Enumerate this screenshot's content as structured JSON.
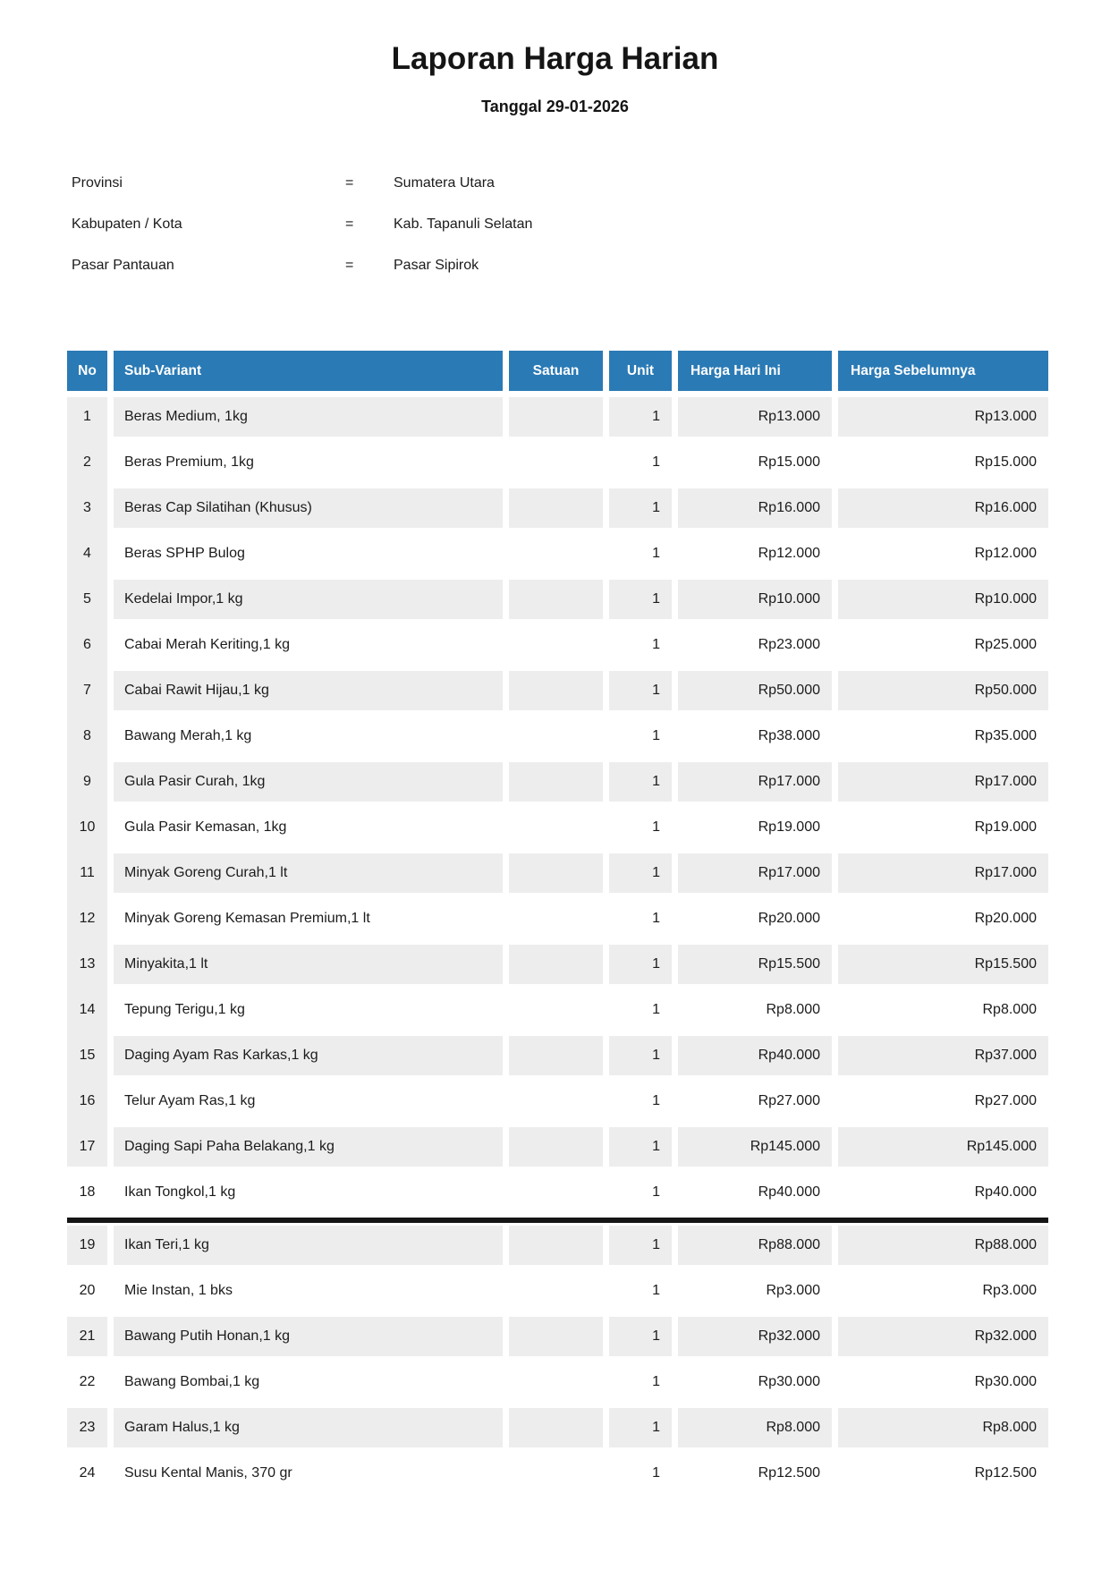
{
  "title": "Laporan Harga Harian",
  "subtitle": "Tanggal 29-01-2026",
  "info": {
    "rows": [
      {
        "label": "Provinsi",
        "eq": "=",
        "value": "Sumatera Utara"
      },
      {
        "label": "Kabupaten / Kota",
        "eq": "=",
        "value": "Kab. Tapanuli Selatan"
      },
      {
        "label": "Pasar Pantauan",
        "eq": "=",
        "value": "Pasar Sipirok"
      }
    ]
  },
  "table": {
    "columns": [
      "No",
      "Sub-Variant",
      "Satuan",
      "Unit",
      "Harga Hari Ini",
      "Harga Sebelumnya"
    ],
    "page_break_after_row": 18,
    "rows": [
      {
        "no": "1",
        "sub_variant": "Beras Medium, 1kg",
        "satuan": "",
        "unit": "1",
        "harga_hari_ini": "Rp13.000",
        "harga_sebelumnya": "Rp13.000"
      },
      {
        "no": "2",
        "sub_variant": "Beras Premium, 1kg",
        "satuan": "",
        "unit": "1",
        "harga_hari_ini": "Rp15.000",
        "harga_sebelumnya": "Rp15.000"
      },
      {
        "no": "3",
        "sub_variant": "Beras Cap Silatihan (Khusus)",
        "satuan": "",
        "unit": "1",
        "harga_hari_ini": "Rp16.000",
        "harga_sebelumnya": "Rp16.000"
      },
      {
        "no": "4",
        "sub_variant": "Beras SPHP Bulog",
        "satuan": "",
        "unit": "1",
        "harga_hari_ini": "Rp12.000",
        "harga_sebelumnya": "Rp12.000"
      },
      {
        "no": "5",
        "sub_variant": "Kedelai Impor,1 kg",
        "satuan": "",
        "unit": "1",
        "harga_hari_ini": "Rp10.000",
        "harga_sebelumnya": "Rp10.000"
      },
      {
        "no": "6",
        "sub_variant": "Cabai Merah Keriting,1 kg",
        "satuan": "",
        "unit": "1",
        "harga_hari_ini": "Rp23.000",
        "harga_sebelumnya": "Rp25.000"
      },
      {
        "no": "7",
        "sub_variant": "Cabai Rawit Hijau,1 kg",
        "satuan": "",
        "unit": "1",
        "harga_hari_ini": "Rp50.000",
        "harga_sebelumnya": "Rp50.000"
      },
      {
        "no": "8",
        "sub_variant": "Bawang Merah,1 kg",
        "satuan": "",
        "unit": "1",
        "harga_hari_ini": "Rp38.000",
        "harga_sebelumnya": "Rp35.000"
      },
      {
        "no": "9",
        "sub_variant": "Gula Pasir Curah, 1kg",
        "satuan": "",
        "unit": "1",
        "harga_hari_ini": "Rp17.000",
        "harga_sebelumnya": "Rp17.000"
      },
      {
        "no": "10",
        "sub_variant": "Gula Pasir Kemasan, 1kg",
        "satuan": "",
        "unit": "1",
        "harga_hari_ini": "Rp19.000",
        "harga_sebelumnya": "Rp19.000"
      },
      {
        "no": "11",
        "sub_variant": "Minyak Goreng Curah,1 lt",
        "satuan": "",
        "unit": "1",
        "harga_hari_ini": "Rp17.000",
        "harga_sebelumnya": "Rp17.000"
      },
      {
        "no": "12",
        "sub_variant": "Minyak Goreng Kemasan Premium,1 lt",
        "satuan": "",
        "unit": "1",
        "harga_hari_ini": "Rp20.000",
        "harga_sebelumnya": "Rp20.000"
      },
      {
        "no": "13",
        "sub_variant": "Minyakita,1 lt",
        "satuan": "",
        "unit": "1",
        "harga_hari_ini": "Rp15.500",
        "harga_sebelumnya": "Rp15.500"
      },
      {
        "no": "14",
        "sub_variant": "Tepung Terigu,1 kg",
        "satuan": "",
        "unit": "1",
        "harga_hari_ini": "Rp8.000",
        "harga_sebelumnya": "Rp8.000"
      },
      {
        "no": "15",
        "sub_variant": "Daging Ayam Ras Karkas,1 kg",
        "satuan": "",
        "unit": "1",
        "harga_hari_ini": "Rp40.000",
        "harga_sebelumnya": "Rp37.000"
      },
      {
        "no": "16",
        "sub_variant": "Telur Ayam Ras,1 kg",
        "satuan": "",
        "unit": "1",
        "harga_hari_ini": "Rp27.000",
        "harga_sebelumnya": "Rp27.000"
      },
      {
        "no": "17",
        "sub_variant": "Daging Sapi Paha Belakang,1 kg",
        "satuan": "",
        "unit": "1",
        "harga_hari_ini": "Rp145.000",
        "harga_sebelumnya": "Rp145.000"
      },
      {
        "no": "18",
        "sub_variant": "Ikan Tongkol,1 kg",
        "satuan": "",
        "unit": "1",
        "harga_hari_ini": "Rp40.000",
        "harga_sebelumnya": "Rp40.000"
      },
      {
        "no": "19",
        "sub_variant": "Ikan Teri,1 kg",
        "satuan": "",
        "unit": "1",
        "harga_hari_ini": "Rp88.000",
        "harga_sebelumnya": "Rp88.000"
      },
      {
        "no": "20",
        "sub_variant": "Mie Instan, 1 bks",
        "satuan": "",
        "unit": "1",
        "harga_hari_ini": "Rp3.000",
        "harga_sebelumnya": "Rp3.000"
      },
      {
        "no": "21",
        "sub_variant": "Bawang Putih Honan,1 kg",
        "satuan": "",
        "unit": "1",
        "harga_hari_ini": "Rp32.000",
        "harga_sebelumnya": "Rp32.000"
      },
      {
        "no": "22",
        "sub_variant": "Bawang Bombai,1 kg",
        "satuan": "",
        "unit": "1",
        "harga_hari_ini": "Rp30.000",
        "harga_sebelumnya": "Rp30.000"
      },
      {
        "no": "23",
        "sub_variant": "Garam Halus,1 kg",
        "satuan": "",
        "unit": "1",
        "harga_hari_ini": "Rp8.000",
        "harga_sebelumnya": "Rp8.000"
      },
      {
        "no": "24",
        "sub_variant": "Susu Kental Manis, 370 gr",
        "satuan": "",
        "unit": "1",
        "harga_hari_ini": "Rp12.500",
        "harga_sebelumnya": "Rp12.500"
      }
    ]
  },
  "colors": {
    "header_bg": "#2a7ab5",
    "stripe_bg": "#ededed",
    "divider": "#151515"
  }
}
